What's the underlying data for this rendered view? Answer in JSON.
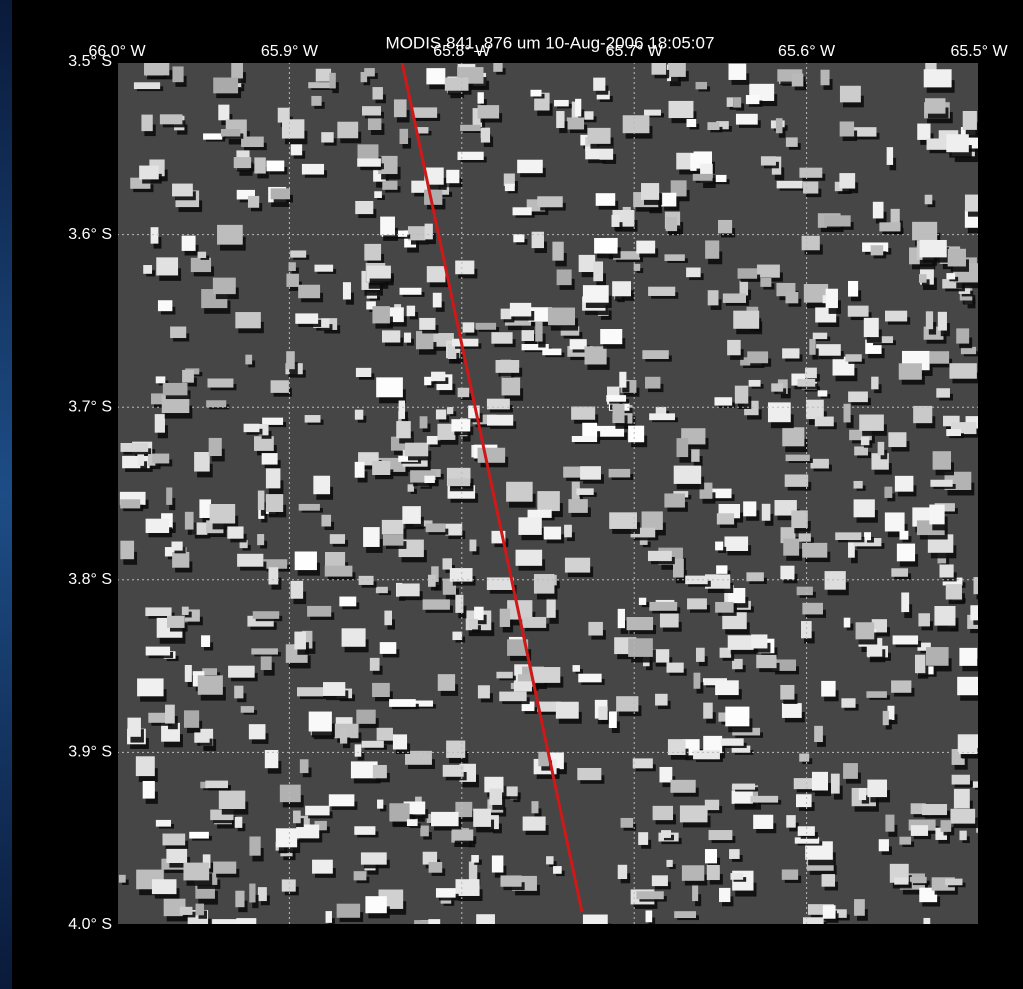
{
  "title": "MODIS 841_876 um 10-Aug-2006 18:05:07",
  "map": {
    "lonlim": [
      66.0,
      65.5
    ],
    "latlim": [
      3.5,
      4.0
    ],
    "lonticks": [
      {
        "value": 66.0,
        "label": "66.0° W"
      },
      {
        "value": 65.9,
        "label": "65.9° W"
      },
      {
        "value": 65.8,
        "label": "65.8° W"
      },
      {
        "value": 65.7,
        "label": "65.7° W"
      },
      {
        "value": 65.6,
        "label": "65.6° W"
      },
      {
        "value": 65.5,
        "label": "65.5° W"
      }
    ],
    "latticks": [
      {
        "value": 3.5,
        "label": "3.5° S"
      },
      {
        "value": 3.6,
        "label": "3.6° S"
      },
      {
        "value": 3.7,
        "label": "3.7° S"
      },
      {
        "value": 3.8,
        "label": "3.8° S"
      },
      {
        "value": 3.9,
        "label": "3.9° S"
      },
      {
        "value": 4.0,
        "label": "4.0° S"
      }
    ],
    "grid": true,
    "track_color": "#d01818"
  }
}
